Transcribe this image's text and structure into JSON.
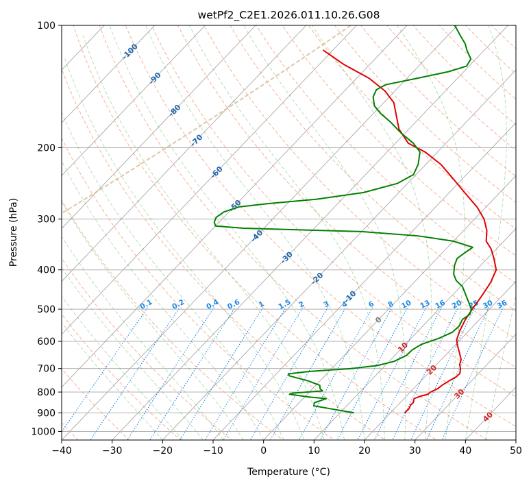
{
  "chart_data": {
    "type": "line",
    "subtype": "skew-t log-p",
    "title": "wetPf2_C2E1.2026.011.10.26.G08",
    "xlabel": "Temperature (°C)",
    "ylabel": "Pressure (hPa)",
    "xlim": [
      -40,
      50
    ],
    "ylim_hpa": [
      1050,
      100
    ],
    "y_scale": "log",
    "grid": true,
    "x_ticks": [
      "-40",
      "-30",
      "-20",
      "-10",
      "0",
      "10",
      "20",
      "30",
      "40",
      "50"
    ],
    "y_ticks": [
      "100",
      "200",
      "300",
      "400",
      "500",
      "600",
      "700",
      "800",
      "900",
      "1000"
    ],
    "colors": {
      "temperature": "#e00000",
      "dewpoint": "#008000",
      "isotherm": "#a8a8a8",
      "dry_adiabat": "#f4a582",
      "moist_adiabat": "#2ca02c",
      "mixing_ratio": "#1e88e5",
      "adiabat_label": "#2166ac",
      "warm_label": "#d62728",
      "ice_curve": "#d2b48c"
    },
    "dry_adiabat_labels": [
      {
        "text": "-100",
        "t": -100,
        "p": 116
      },
      {
        "text": "-90",
        "t": -90,
        "p": 135
      },
      {
        "text": "-80",
        "t": -80,
        "p": 162
      },
      {
        "text": "-70",
        "t": -70,
        "p": 192
      },
      {
        "text": "-60",
        "t": -60,
        "p": 230
      },
      {
        "text": "-50",
        "t": -50,
        "p": 278
      },
      {
        "text": "-40",
        "t": -40,
        "p": 330
      },
      {
        "text": "-30",
        "t": -30,
        "p": 373
      },
      {
        "text": "-20",
        "t": -20,
        "p": 420
      },
      {
        "text": "-10",
        "t": -10,
        "p": 466
      },
      {
        "text": "0",
        "t": 0,
        "p": 531
      },
      {
        "text": "10",
        "t": 10,
        "p": 620
      },
      {
        "text": "20",
        "t": 20,
        "p": 705
      },
      {
        "text": "30",
        "t": 30,
        "p": 808
      },
      {
        "text": "40",
        "t": 40,
        "p": 920
      }
    ],
    "mixing_ratio_labels": [
      "0.1",
      "0.2",
      "0.4",
      "0.6",
      "1",
      "1.5",
      "2",
      "3",
      "4",
      "6",
      "8",
      "10",
      "13",
      "16",
      "20",
      "25",
      "30",
      "36"
    ],
    "temperature_profile": [
      {
        "p": 900,
        "t": 22.8
      },
      {
        "p": 880,
        "t": 22.9
      },
      {
        "p": 860,
        "t": 22.5
      },
      {
        "p": 850,
        "t": 22.6
      },
      {
        "p": 830,
        "t": 22.0
      },
      {
        "p": 820,
        "t": 22.7
      },
      {
        "p": 810,
        "t": 23.9
      },
      {
        "p": 800,
        "t": 24.0
      },
      {
        "p": 785,
        "t": 24.8
      },
      {
        "p": 770,
        "t": 25.0
      },
      {
        "p": 750,
        "t": 25.6
      },
      {
        "p": 735,
        "t": 26.2
      },
      {
        "p": 720,
        "t": 26.3
      },
      {
        "p": 700,
        "t": 25.5
      },
      {
        "p": 685,
        "t": 24.6
      },
      {
        "p": 665,
        "t": 23.9
      },
      {
        "p": 640,
        "t": 22.3
      },
      {
        "p": 615,
        "t": 20.6
      },
      {
        "p": 595,
        "t": 19.3
      },
      {
        "p": 565,
        "t": 18.2
      },
      {
        "p": 530,
        "t": 17.2
      },
      {
        "p": 500,
        "t": 16.6
      },
      {
        "p": 465,
        "t": 16.0
      },
      {
        "p": 430,
        "t": 15.2
      },
      {
        "p": 400,
        "t": 13.9
      },
      {
        "p": 375,
        "t": 11.3
      },
      {
        "p": 355,
        "t": 8.9
      },
      {
        "p": 340,
        "t": 6.5
      },
      {
        "p": 320,
        "t": 4.6
      },
      {
        "p": 300,
        "t": 1.9
      },
      {
        "p": 280,
        "t": -1.8
      },
      {
        "p": 260,
        "t": -6.5
      },
      {
        "p": 240,
        "t": -11.5
      },
      {
        "p": 220,
        "t": -17.0
      },
      {
        "p": 205,
        "t": -22.5
      },
      {
        "p": 195,
        "t": -27.5
      },
      {
        "p": 180,
        "t": -32.0
      },
      {
        "p": 165,
        "t": -35.5
      },
      {
        "p": 155,
        "t": -38.0
      },
      {
        "p": 145,
        "t": -42.0
      },
      {
        "p": 135,
        "t": -47.5
      },
      {
        "p": 125,
        "t": -55.0
      },
      {
        "p": 115,
        "t": -62.0
      }
    ],
    "dewpoint_profile": [
      {
        "p": 900,
        "t": 12.8
      },
      {
        "p": 880,
        "t": 7.5
      },
      {
        "p": 865,
        "t": 3.5
      },
      {
        "p": 850,
        "t": 3.0
      },
      {
        "p": 838,
        "t": 4.0
      },
      {
        "p": 830,
        "t": 4.6
      },
      {
        "p": 823,
        "t": 1.0
      },
      {
        "p": 810,
        "t": -3.5
      },
      {
        "p": 805,
        "t": -3.2
      },
      {
        "p": 795,
        "t": 2.4
      },
      {
        "p": 785,
        "t": 1.5
      },
      {
        "p": 770,
        "t": 0.8
      },
      {
        "p": 750,
        "t": -2.5
      },
      {
        "p": 730,
        "t": -7.0
      },
      {
        "p": 722,
        "t": -7.6
      },
      {
        "p": 712,
        "t": -4.0
      },
      {
        "p": 700,
        "t": 4.0
      },
      {
        "p": 688,
        "t": 8.5
      },
      {
        "p": 672,
        "t": 11.0
      },
      {
        "p": 650,
        "t": 12.3
      },
      {
        "p": 630,
        "t": 12.4
      },
      {
        "p": 610,
        "t": 13.2
      },
      {
        "p": 590,
        "t": 15.5
      },
      {
        "p": 570,
        "t": 17.0
      },
      {
        "p": 550,
        "t": 17.2
      },
      {
        "p": 530,
        "t": 16.6
      },
      {
        "p": 515,
        "t": 17.1
      },
      {
        "p": 500,
        "t": 16.4
      },
      {
        "p": 485,
        "t": 15.0
      },
      {
        "p": 460,
        "t": 12.5
      },
      {
        "p": 440,
        "t": 10.4
      },
      {
        "p": 425,
        "t": 8.0
      },
      {
        "p": 410,
        "t": 6.3
      },
      {
        "p": 390,
        "t": 4.8
      },
      {
        "p": 375,
        "t": 4.0
      },
      {
        "p": 362,
        "t": 4.5
      },
      {
        "p": 352,
        "t": 5.0
      },
      {
        "p": 340,
        "t": 0.0
      },
      {
        "p": 330,
        "t": -8.0
      },
      {
        "p": 322,
        "t": -20.0
      },
      {
        "p": 316,
        "t": -44.0
      },
      {
        "p": 312,
        "t": -50.0
      },
      {
        "p": 305,
        "t": -51.0
      },
      {
        "p": 297,
        "t": -51.5
      },
      {
        "p": 288,
        "t": -51.0
      },
      {
        "p": 280,
        "t": -49.0
      },
      {
        "p": 275,
        "t": -44.0
      },
      {
        "p": 268,
        "t": -35.0
      },
      {
        "p": 258,
        "t": -27.0
      },
      {
        "p": 245,
        "t": -22.0
      },
      {
        "p": 233,
        "t": -20.5
      },
      {
        "p": 220,
        "t": -21.5
      },
      {
        "p": 205,
        "t": -23.5
      },
      {
        "p": 195,
        "t": -26.5
      },
      {
        "p": 185,
        "t": -30.5
      },
      {
        "p": 173,
        "t": -35.0
      },
      {
        "p": 165,
        "t": -38.5
      },
      {
        "p": 158,
        "t": -41.2
      },
      {
        "p": 150,
        "t": -43.2
      },
      {
        "p": 144,
        "t": -43.9
      },
      {
        "p": 140,
        "t": -43.0
      },
      {
        "p": 135,
        "t": -38.0
      },
      {
        "p": 130,
        "t": -33.0
      },
      {
        "p": 126,
        "t": -30.5
      },
      {
        "p": 121,
        "t": -31.0
      },
      {
        "p": 115,
        "t": -33.5
      },
      {
        "p": 111,
        "t": -35.0
      },
      {
        "p": 106,
        "t": -37.5
      },
      {
        "p": 102,
        "t": -39.5
      },
      {
        "p": 100,
        "t": -40.6
      }
    ]
  }
}
